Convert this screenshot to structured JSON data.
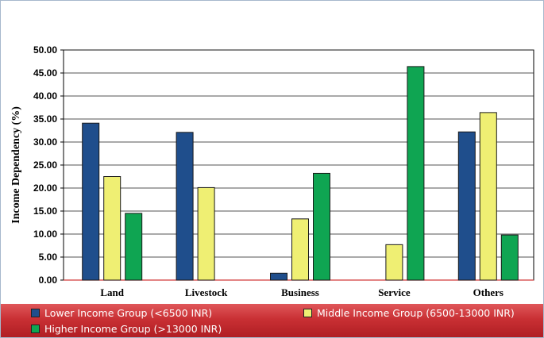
{
  "chart_data": {
    "type": "bar",
    "categories": [
      "Land",
      "Livestock",
      "Business",
      "Service",
      "Others"
    ],
    "series": [
      {
        "name": "Lower Income Group (<6500 INR)",
        "color": "#1f4e8c",
        "values": [
          34.1,
          32.1,
          1.5,
          0,
          32.2
        ]
      },
      {
        "name": "Middle Income Group (6500-13000 INR)",
        "color": "#efef73",
        "values": [
          22.5,
          20.1,
          13.3,
          7.7,
          36.4
        ]
      },
      {
        "name": "Higher Income Group (>13000 INR)",
        "color": "#0fa552",
        "values": [
          14.5,
          0,
          23.2,
          46.4,
          9.8
        ]
      }
    ],
    "ylabel": "Income Dependency (%)",
    "xlabel": "",
    "ylim": [
      0,
      50
    ],
    "yticks": [
      "0.00",
      "5.00",
      "10.00",
      "15.00",
      "20.00",
      "25.00",
      "30.00",
      "35.00",
      "40.00",
      "45.00",
      "50.00"
    ],
    "grid": true,
    "legend_position": "bottom"
  }
}
